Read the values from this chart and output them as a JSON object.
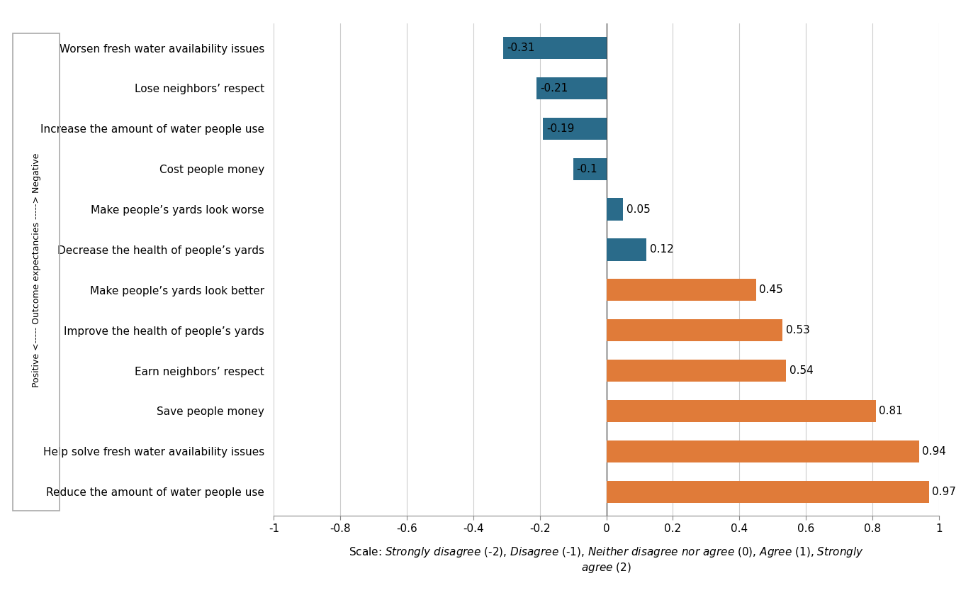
{
  "categories": [
    "Reduce the amount of water people use",
    "Help solve fresh water availability issues",
    "Save people money",
    "Earn neighbors’ respect",
    "Improve the health of people’s yards",
    "Make people’s yards look better",
    "Decrease the health of people’s yards",
    "Make people’s yards look worse",
    "Cost people money",
    "Increase the amount of water people use",
    "Lose neighbors’ respect",
    "Worsen fresh water availability issues"
  ],
  "values": [
    0.97,
    0.94,
    0.81,
    0.54,
    0.53,
    0.45,
    0.12,
    0.05,
    -0.1,
    -0.19,
    -0.21,
    -0.31
  ],
  "colors_teal": "#2a6b8a",
  "colors_orange": "#e07b39",
  "xlim": [
    -1,
    1
  ],
  "xticks": [
    -1.0,
    -0.8,
    -0.6,
    -0.4,
    -0.2,
    0.0,
    0.2,
    0.4,
    0.6,
    0.8,
    1.0
  ],
  "xtick_labels": [
    "-1",
    "-0.8",
    "-0.6",
    "-0.4",
    "-0.2",
    "0",
    "0.2",
    "0.4",
    "0.6",
    "0.8",
    "1"
  ],
  "background_color": "#ffffff",
  "bar_height": 0.55,
  "value_fontsize": 11,
  "label_fontsize": 11,
  "tick_fontsize": 11,
  "left_label_text": "Positive <----- Outcome expectancies -----> Negative"
}
